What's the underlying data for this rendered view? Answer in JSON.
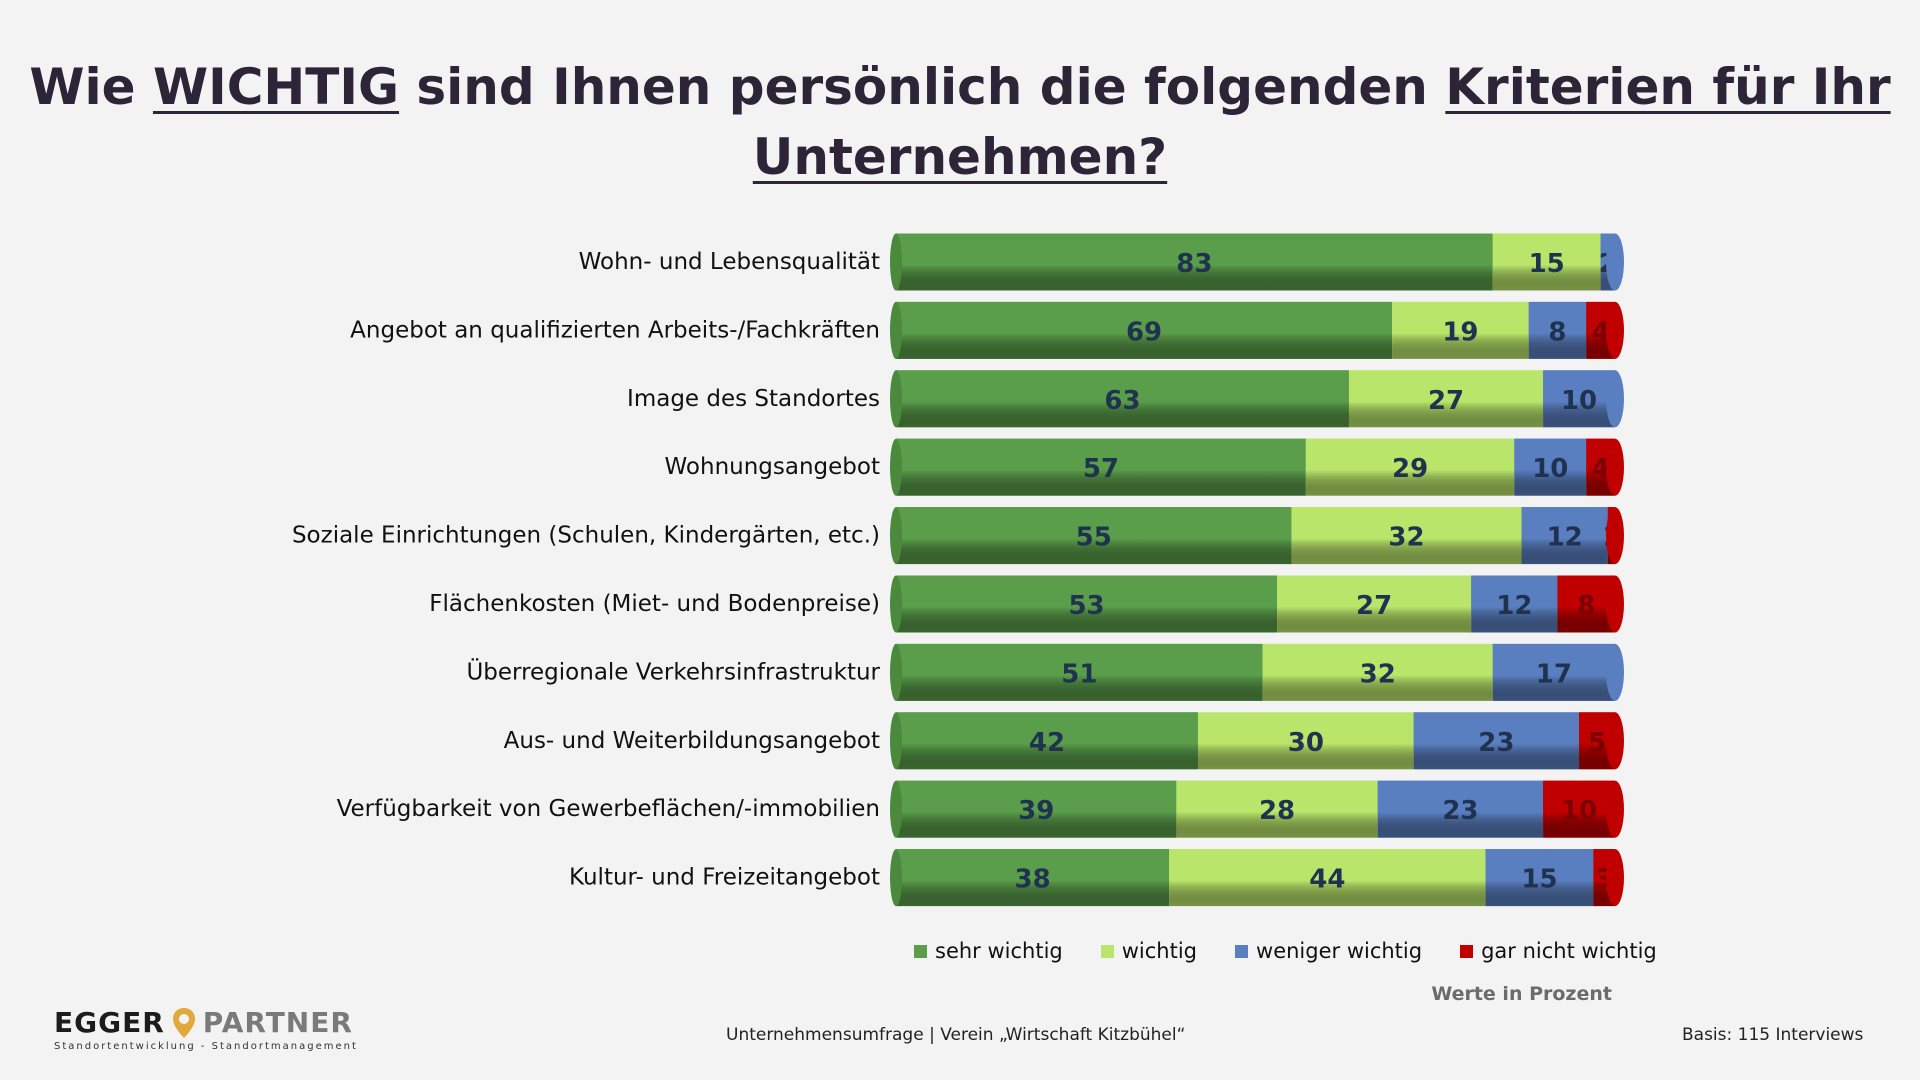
{
  "title": {
    "part1": "Wie ",
    "part2": "WICHTIG",
    "part3": " sind Ihnen persönlich die folgenden ",
    "part4": "Kriterien für Ihr",
    "part5": "Unternehmen?"
  },
  "colors": {
    "sehr_wichtig": "#5a9d4a",
    "wichtig": "#b9e56a",
    "weniger_wichtig": "#5a7fc0",
    "gar_nicht_wichtig": "#c00000",
    "label_on_bar": "#1f3350"
  },
  "chart_data": {
    "type": "bar",
    "orientation": "horizontal",
    "stacked": true,
    "categories": [
      "Wohn- und Lebensqualität",
      "Angebot an qualifizierten Arbeits-/Fachkräften",
      "Image des Standortes",
      "Wohnungsangebot",
      "Soziale Einrichtungen (Schulen, Kindergärten, etc.)",
      "Flächenkosten (Miet- und Bodenpreise)",
      "Überregionale Verkehrsinfrastruktur",
      "Aus- und Weiterbildungsangebot",
      "Verfügbarkeit von Gewerbeflächen/-immobilien",
      "Kultur- und Freizeitangebot"
    ],
    "series": [
      {
        "name": "sehr wichtig",
        "color": "#5a9d4a",
        "values": [
          83,
          69,
          63,
          57,
          55,
          53,
          51,
          42,
          39,
          38
        ]
      },
      {
        "name": "wichtig",
        "color": "#b9e56a",
        "values": [
          15,
          19,
          27,
          29,
          32,
          27,
          32,
          30,
          28,
          44
        ]
      },
      {
        "name": "weniger wichtig",
        "color": "#5a7fc0",
        "values": [
          2,
          8,
          10,
          10,
          12,
          12,
          17,
          23,
          23,
          15
        ]
      },
      {
        "name": "gar nicht wichtig",
        "color": "#c00000",
        "values": [
          0,
          4,
          0,
          4,
          1,
          8,
          0,
          5,
          10,
          3
        ]
      }
    ],
    "xlim": [
      0,
      100
    ],
    "legend": "bottom",
    "grid": false,
    "unit_note": "Werte in Prozent"
  },
  "footer": {
    "survey": "Unternehmensumfrage | Verein „Wirtschaft Kitzbühel“",
    "basis": "Basis: 115 Interviews"
  },
  "logo": {
    "name_left": "EGGER",
    "name_right": "PARTNER",
    "tagline": "Standortentwicklung - Standortmanagement",
    "pin_color": "#e0a93a"
  }
}
